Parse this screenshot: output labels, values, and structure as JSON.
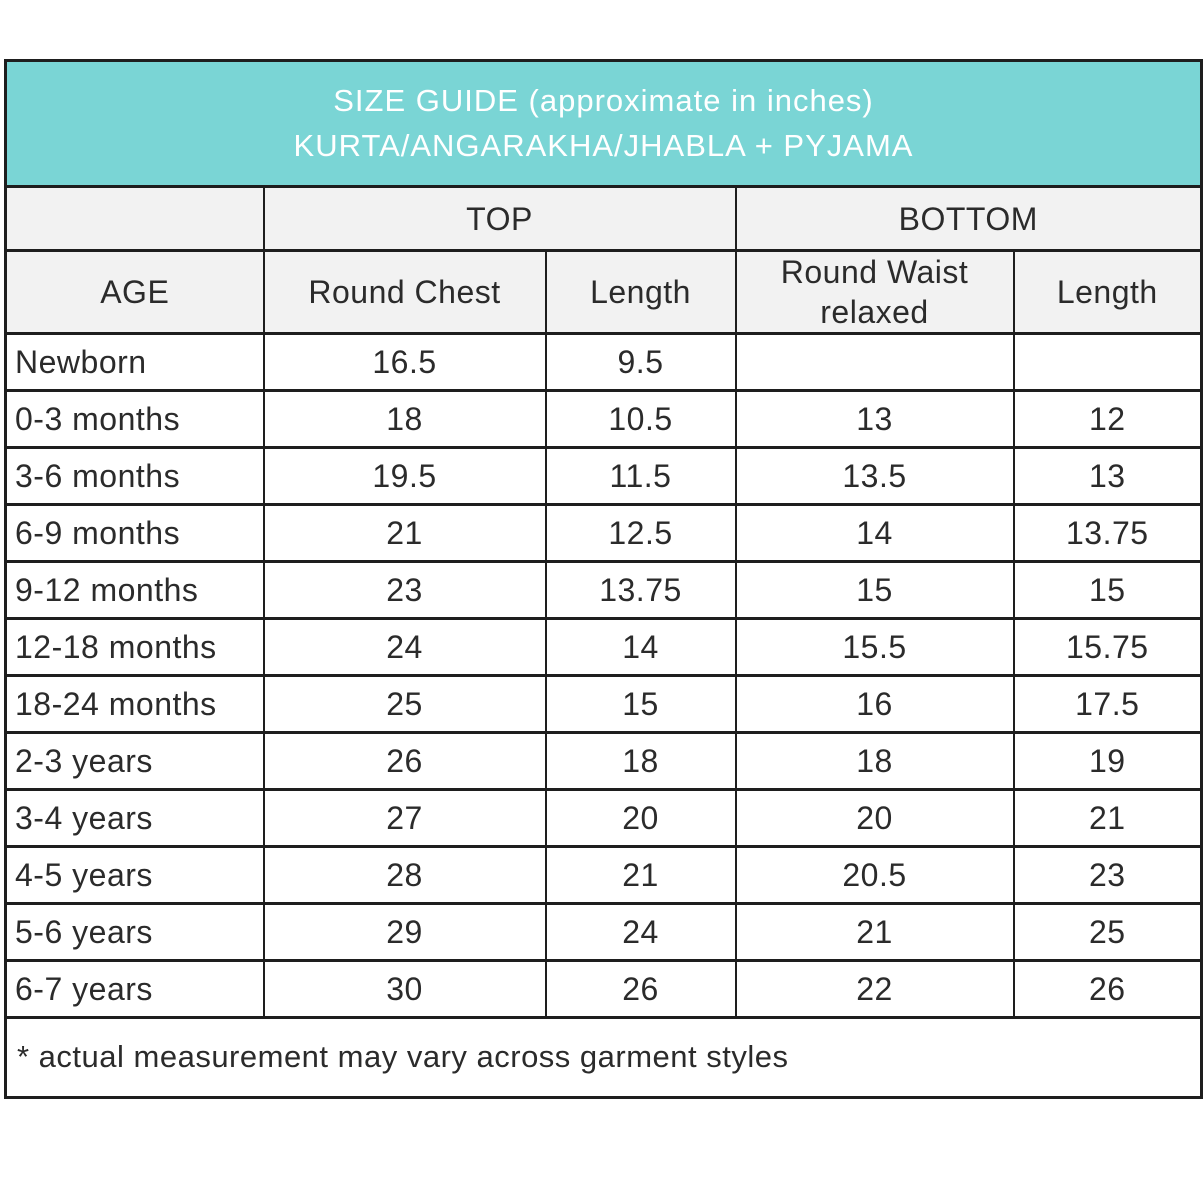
{
  "header": {
    "title_line1": "SIZE GUIDE (approximate in inches)",
    "title_line2": "KURTA/ANGARAKHA/JHABLA + PYJAMA"
  },
  "colors": {
    "accent_teal": "#7ad5d5",
    "header_gray": "#f2f2f2",
    "border_dark": "#1e1e1e",
    "text_dark": "#2b2b2b",
    "title_text": "#ffffff"
  },
  "table": {
    "group_headers": {
      "top": "TOP",
      "bottom": "BOTTOM"
    },
    "column_headers": {
      "age": "AGE",
      "round_chest": "Round Chest",
      "top_length": "Length",
      "round_waist": "Round Waist relaxed",
      "bottom_length": "Length"
    },
    "rows": [
      {
        "age": "Newborn",
        "round_chest": "16.5",
        "top_length": "9.5",
        "round_waist": "",
        "bottom_length": ""
      },
      {
        "age": "0-3 months",
        "round_chest": "18",
        "top_length": "10.5",
        "round_waist": "13",
        "bottom_length": "12"
      },
      {
        "age": "3-6 months",
        "round_chest": "19.5",
        "top_length": "11.5",
        "round_waist": "13.5",
        "bottom_length": "13"
      },
      {
        "age": "6-9 months",
        "round_chest": "21",
        "top_length": "12.5",
        "round_waist": "14",
        "bottom_length": "13.75"
      },
      {
        "age": "9-12 months",
        "round_chest": "23",
        "top_length": "13.75",
        "round_waist": "15",
        "bottom_length": "15"
      },
      {
        "age": "12-18 months",
        "round_chest": "24",
        "top_length": "14",
        "round_waist": "15.5",
        "bottom_length": "15.75"
      },
      {
        "age": "18-24 months",
        "round_chest": "25",
        "top_length": "15",
        "round_waist": "16",
        "bottom_length": "17.5"
      },
      {
        "age": "2-3 years",
        "round_chest": "26",
        "top_length": "18",
        "round_waist": "18",
        "bottom_length": "19"
      },
      {
        "age": "3-4 years",
        "round_chest": "27",
        "top_length": "20",
        "round_waist": "20",
        "bottom_length": "21"
      },
      {
        "age": "4-5 years",
        "round_chest": "28",
        "top_length": "21",
        "round_waist": "20.5",
        "bottom_length": "23"
      },
      {
        "age": "5-6 years",
        "round_chest": "29",
        "top_length": "24",
        "round_waist": "21",
        "bottom_length": "25"
      },
      {
        "age": "6-7 years",
        "round_chest": "30",
        "top_length": "26",
        "round_waist": "22",
        "bottom_length": "26"
      }
    ],
    "footnote": "* actual measurement may vary across garment styles"
  }
}
